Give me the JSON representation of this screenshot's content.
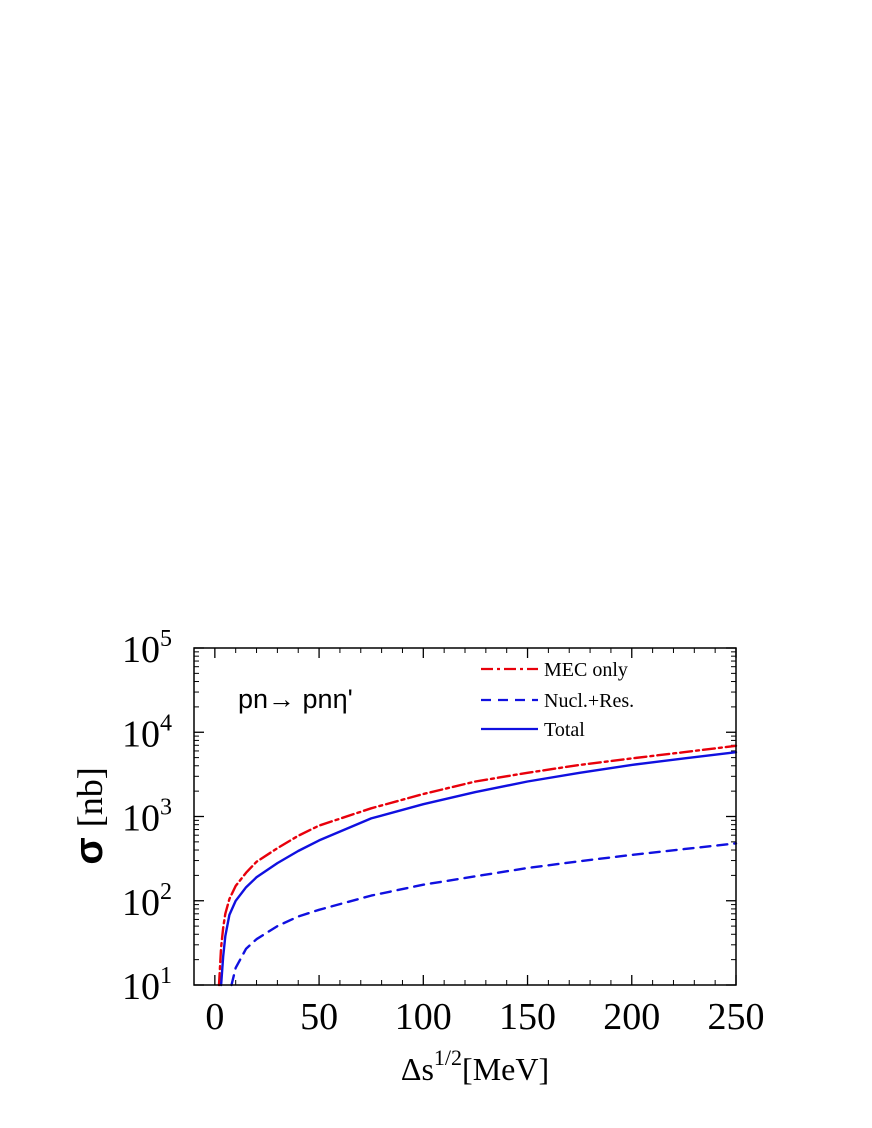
{
  "chart_data": {
    "type": "line",
    "annotation": "pn→ pnη'",
    "xlabel": {
      "main": "Δs",
      "sup": "1/2",
      "unit": "[MeV]"
    },
    "ylabel": {
      "symbol": "σ",
      "unit": "[nb]"
    },
    "xlim": [
      -10,
      250
    ],
    "ylim": [
      10,
      100000
    ],
    "yscale": "log",
    "x_ticks": [
      {
        "value": 0,
        "label": "0"
      },
      {
        "value": 50,
        "label": "50"
      },
      {
        "value": 100,
        "label": "100"
      },
      {
        "value": 150,
        "label": "150"
      },
      {
        "value": 200,
        "label": "200"
      },
      {
        "value": 250,
        "label": "250"
      }
    ],
    "y_ticks": [
      {
        "value": 10,
        "base": "10",
        "exp": "1"
      },
      {
        "value": 100,
        "base": "10",
        "exp": "2"
      },
      {
        "value": 1000,
        "base": "10",
        "exp": "3"
      },
      {
        "value": 10000,
        "base": "10",
        "exp": "4"
      },
      {
        "value": 100000,
        "base": "10",
        "exp": "5"
      }
    ],
    "legend_position": "top-right",
    "grid": false,
    "series": [
      {
        "name": "MEC only",
        "color": "#e8000b",
        "dash": "dashdot",
        "x": [
          2,
          3,
          4,
          5,
          7,
          10,
          15,
          20,
          30,
          40,
          50,
          75,
          100,
          125,
          150,
          175,
          200,
          225,
          250
        ],
        "y": [
          10,
          28,
          48,
          70,
          105,
          150,
          215,
          290,
          420,
          590,
          780,
          1250,
          1850,
          2600,
          3300,
          4100,
          4900,
          5800,
          6900
        ]
      },
      {
        "name": "Nucl.+Res.",
        "color": "#1010e0",
        "dash": "dashed",
        "x": [
          8,
          10,
          15,
          20,
          30,
          40,
          50,
          75,
          100,
          125,
          150,
          175,
          200,
          225,
          250
        ],
        "y": [
          10,
          16,
          27,
          35,
          50,
          65,
          78,
          115,
          155,
          195,
          245,
          295,
          350,
          410,
          480
        ]
      },
      {
        "name": "Total",
        "color": "#1010e0",
        "dash": "solid",
        "x": [
          3,
          4,
          5,
          7,
          10,
          15,
          20,
          30,
          40,
          50,
          75,
          100,
          125,
          150,
          175,
          200,
          225,
          250
        ],
        "y": [
          10,
          22,
          38,
          68,
          100,
          145,
          190,
          280,
          390,
          520,
          950,
          1400,
          1950,
          2600,
          3300,
          4100,
          4900,
          5800
        ]
      }
    ]
  }
}
